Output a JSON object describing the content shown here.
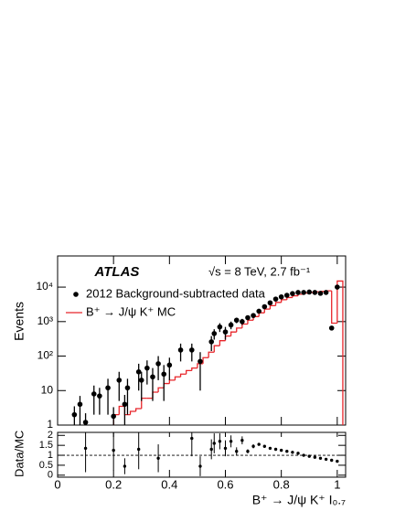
{
  "chart_data": [
    {
      "type": "histogram",
      "experiment": "ATLAS",
      "subtitle": "√s = 8 TeV, 2.7 fb⁻¹",
      "y_label": "Events",
      "xlim": [
        0,
        1.03
      ],
      "ylim": [
        1,
        80000
      ],
      "log_y": true,
      "xticks": [
        0,
        0.2,
        0.4,
        0.6,
        0.8,
        1
      ],
      "yticks": [
        1,
        10,
        {
          "value": 100,
          "label": "10²"
        },
        {
          "value": 1000,
          "label": "10³"
        },
        {
          "value": 10000,
          "label": "10⁴"
        }
      ],
      "points": {
        "name": "2012 Background-subtracted data",
        "color": "#000000",
        "x": [
          0.06,
          0.08,
          0.1,
          0.13,
          0.15,
          0.18,
          0.2,
          0.22,
          0.24,
          0.25,
          0.29,
          0.3,
          0.32,
          0.34,
          0.36,
          0.38,
          0.4,
          0.44,
          0.48,
          0.51,
          0.55,
          0.56,
          0.58,
          0.6,
          0.62,
          0.64,
          0.66,
          0.68,
          0.7,
          0.72,
          0.74,
          0.76,
          0.78,
          0.8,
          0.82,
          0.84,
          0.86,
          0.88,
          0.9,
          0.92,
          0.94,
          0.96,
          0.98,
          1.0
        ],
        "values": [
          2,
          4,
          1.2,
          8,
          7,
          12,
          1.8,
          20,
          4,
          12,
          35,
          20,
          45,
          25,
          60,
          30,
          55,
          150,
          150,
          70,
          260,
          450,
          700,
          500,
          800,
          1100,
          1000,
          1300,
          1500,
          2000,
          2700,
          3500,
          4500,
          5200,
          5800,
          6500,
          7000,
          7000,
          7200,
          7000,
          6600,
          7000,
          650,
          10000
        ],
        "errors": [
          1.5,
          3,
          1,
          6,
          5,
          10,
          1.5,
          15,
          3.5,
          10,
          25,
          15,
          30,
          20,
          40,
          25,
          35,
          80,
          80,
          60,
          120,
          150,
          200,
          200,
          200,
          200,
          200,
          200,
          200,
          200,
          200,
          200,
          200,
          200,
          200,
          200,
          200,
          200,
          200,
          200,
          200,
          200,
          50,
          300
        ]
      },
      "histogram": {
        "name": "B⁺ → J/ψ K⁺ MC",
        "color": "#e8252a",
        "bins": [
          0,
          0.02,
          0.04,
          0.06,
          0.08,
          0.1,
          0.12,
          0.14,
          0.16,
          0.18,
          0.2,
          0.22,
          0.24,
          0.26,
          0.28,
          0.3,
          0.32,
          0.34,
          0.36,
          0.38,
          0.4,
          0.42,
          0.44,
          0.46,
          0.48,
          0.5,
          0.52,
          0.54,
          0.56,
          0.58,
          0.6,
          0.62,
          0.64,
          0.66,
          0.68,
          0.7,
          0.72,
          0.74,
          0.76,
          0.78,
          0.8,
          0.82,
          0.84,
          0.86,
          0.88,
          0.9,
          0.92,
          0.94,
          0.96,
          0.98,
          1.0,
          1.02
        ],
        "counts": [
          null,
          null,
          null,
          null,
          null,
          null,
          null,
          null,
          null,
          null,
          2,
          3.5,
          2,
          2.5,
          3,
          6,
          6,
          9,
          12,
          16,
          20,
          25,
          30,
          38,
          45,
          60,
          90,
          130,
          200,
          280,
          380,
          500,
          650,
          850,
          1100,
          1400,
          1800,
          2300,
          2900,
          3600,
          4300,
          5000,
          5600,
          6200,
          6700,
          7000,
          7300,
          7500,
          7800,
          900,
          15000
        ]
      }
    },
    {
      "type": "ratio",
      "y_label": "Data/MC",
      "x_label": "B⁺ → J/ψ K⁺ I₀.₇",
      "xlim": [
        0,
        1.03
      ],
      "ylim": [
        -0.1,
        2.15
      ],
      "xticks": [
        0,
        0.2,
        0.4,
        0.6,
        0.8,
        1
      ],
      "yticks": [
        0,
        0.5,
        1,
        1.5,
        2
      ],
      "reference_line": 1,
      "color": "#000000",
      "x": [
        0.1,
        0.2,
        0.24,
        0.29,
        0.36,
        0.48,
        0.51,
        0.55,
        0.56,
        0.58,
        0.6,
        0.62,
        0.64,
        0.66,
        0.68,
        0.7,
        0.72,
        0.74,
        0.76,
        0.78,
        0.8,
        0.82,
        0.84,
        0.86,
        0.88,
        0.9,
        0.92,
        0.94,
        0.96,
        0.98,
        1.0
      ],
      "values": [
        1.35,
        1.25,
        0.45,
        1.3,
        0.85,
        1.85,
        0.45,
        1.3,
        1.6,
        1.7,
        1.35,
        1.7,
        1.2,
        1.75,
        1.2,
        1.45,
        1.55,
        1.45,
        1.35,
        1.3,
        1.25,
        1.2,
        1.15,
        1.1,
        1.0,
        0.95,
        0.9,
        0.85,
        0.8,
        0.75,
        0.7
      ],
      "errors": [
        1.2,
        1,
        0.4,
        1,
        0.7,
        0.9,
        0.5,
        0.5,
        0.5,
        0.4,
        0.4,
        0.3,
        0.2,
        0.2,
        0.1,
        0.1,
        0.05,
        0.03,
        0.03,
        0.03,
        0.03,
        0.03,
        0.03,
        0.03,
        0.03,
        0.03,
        0.03,
        0.03,
        0.03,
        0.03,
        0.03
      ]
    }
  ]
}
